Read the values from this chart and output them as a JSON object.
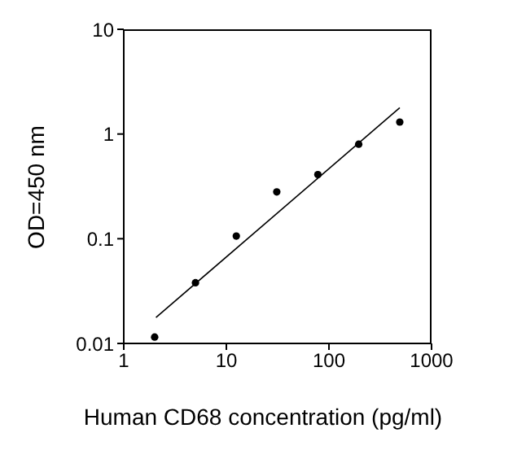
{
  "chart_data": {
    "type": "scatter",
    "xlabel": "Human CD68 concentration (pg/ml)",
    "ylabel": "OD=450 nm",
    "log": "xy",
    "marker": "circle",
    "xlim": [
      1,
      1000
    ],
    "xticks": [
      1,
      10,
      100,
      1000
    ],
    "ylim": [
      0.01,
      10
    ],
    "yticks": [
      0.01,
      0.1,
      1,
      10
    ],
    "series": [
      {
        "color": "#000000",
        "x": [
          2,
          5,
          12.5,
          31,
          78,
          195,
          490
        ],
        "values": [
          0.0115,
          0.038,
          0.106,
          0.28,
          0.41,
          0.8,
          1.3
        ]
      },
      {
        "type": "line",
        "color": "#000000",
        "marker": "none",
        "line_style": "solid",
        "x": [
          2.06,
          490
        ],
        "values": [
          0.0177,
          1.78
        ]
      }
    ]
  }
}
